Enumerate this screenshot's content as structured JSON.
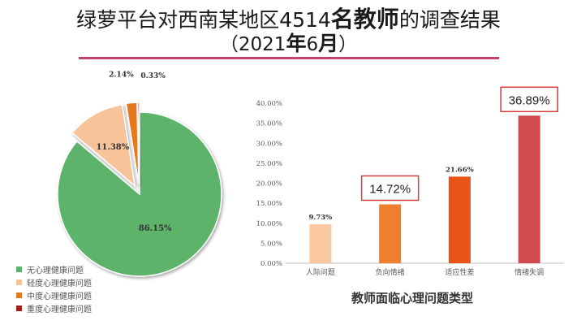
{
  "header": {
    "title_prefix": "绿萝平台对西南某地区4514",
    "title_emph": "名教师",
    "title_suffix": "的调查结果",
    "subtitle_open": "（2021",
    "subtitle_year": "年",
    "subtitle_month_num": "6",
    "subtitle_month": "月",
    "subtitle_close": "）"
  },
  "pie_chart": {
    "labels": [
      "86.15%",
      "11.38%",
      "2.14%",
      "0.33%"
    ],
    "legend": [
      "无心理健康问题",
      "轻度心理健康问题",
      "中度心理健康问题",
      "重度心理健康问题"
    ]
  },
  "bar_caption": "教师面临心理问题类型",
  "chart_data": [
    {
      "type": "pie",
      "title": "",
      "categories": [
        "无心理健康问题",
        "轻度心理健康问题",
        "中度心理健康问题",
        "重度心理健康问题"
      ],
      "values": [
        86.15,
        11.38,
        2.14,
        0.33
      ],
      "unit": "%",
      "colors": [
        "#5db36b",
        "#f7c49a",
        "#e8781e",
        "#a41c1c"
      ],
      "exploded": [
        false,
        true,
        true,
        true
      ]
    },
    {
      "type": "bar",
      "title": "教师面临心理问题类型",
      "categories": [
        "人际问题",
        "负向情绪",
        "适应性差",
        "情绪失调"
      ],
      "values": [
        9.73,
        14.72,
        21.66,
        36.89
      ],
      "value_labels": [
        "9.73%",
        "14.72%",
        "21.66%",
        "36.89%"
      ],
      "highlighted": [
        false,
        true,
        false,
        true
      ],
      "colors": [
        "#f9c8a0",
        "#ee7f2d",
        "#ea5417",
        "#d04a4f"
      ],
      "ylim": [
        0,
        40
      ],
      "yticks": [
        "0.00%",
        "5.00%",
        "10.00%",
        "15.00%",
        "20.00%",
        "25.00%",
        "30.00%",
        "35.00%",
        "40.00%"
      ],
      "ytick_values": [
        0,
        5,
        10,
        15,
        20,
        25,
        30,
        35,
        40
      ],
      "xlabel": "",
      "ylabel": "",
      "grid": false
    }
  ]
}
